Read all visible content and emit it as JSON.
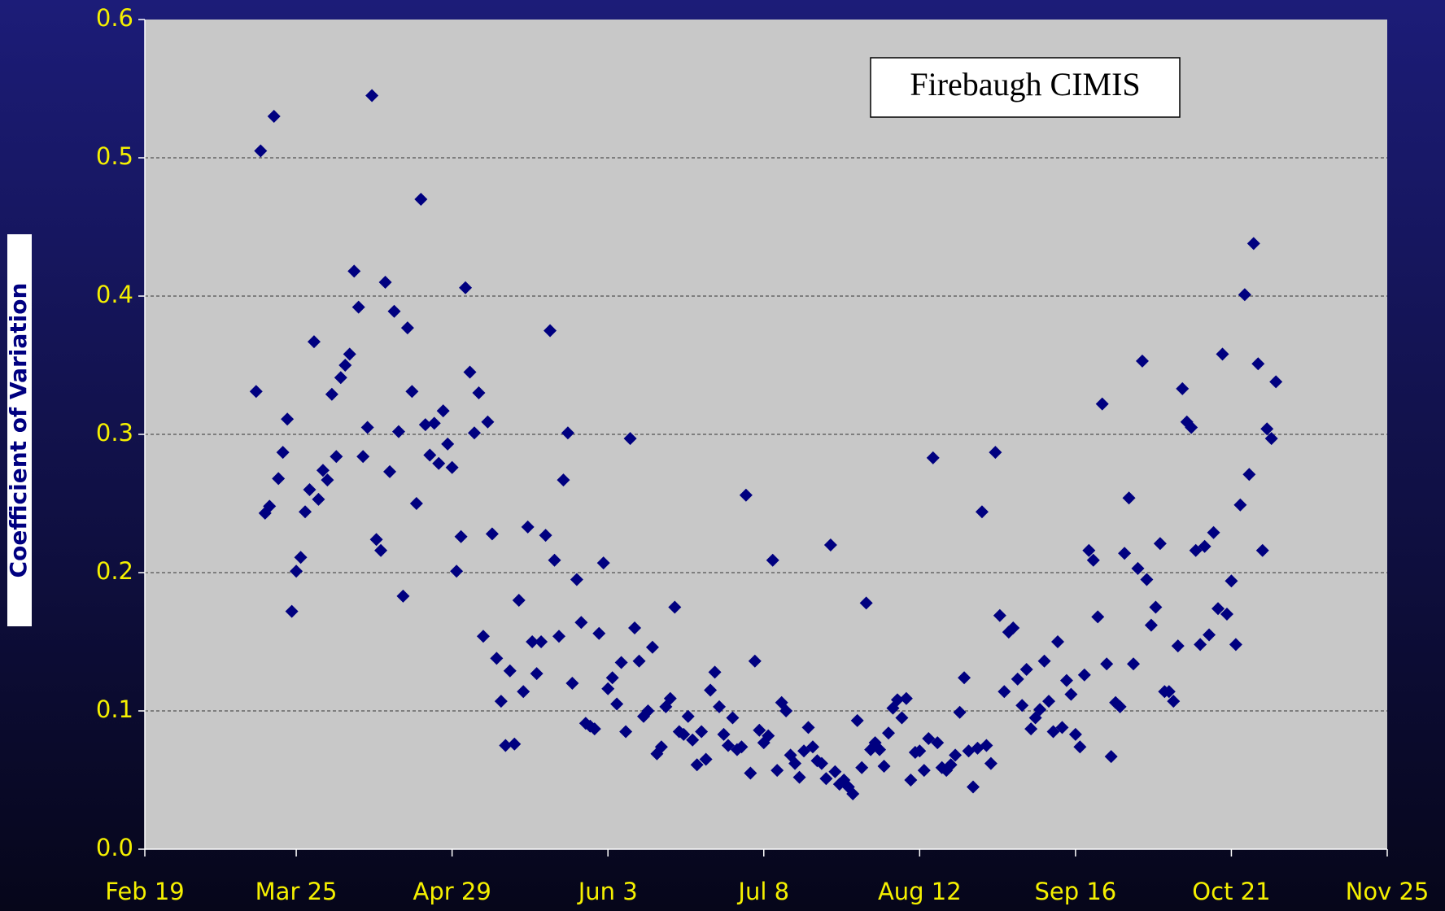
{
  "chart_data": {
    "type": "scatter",
    "y_label": "Coefficient of Variation",
    "annotation": "Firebaugh CIMIS",
    "color": "#000080",
    "grid": true,
    "xlim": [
      50,
      329
    ],
    "xticks": [
      {
        "value": 50,
        "label": "Feb 19"
      },
      {
        "value": 84,
        "label": "Mar 25"
      },
      {
        "value": 119,
        "label": "Apr 29"
      },
      {
        "value": 154,
        "label": "Jun 3"
      },
      {
        "value": 189,
        "label": "Jul 8"
      },
      {
        "value": 224,
        "label": "Aug 12"
      },
      {
        "value": 259,
        "label": "Sep 16"
      },
      {
        "value": 294,
        "label": "Oct 21"
      },
      {
        "value": 329,
        "label": "Nov 25"
      }
    ],
    "ylim": [
      0,
      0.6
    ],
    "yticks": [
      {
        "value": 0,
        "label": "0.0"
      },
      0.1,
      0.2,
      0.3,
      0.4,
      0.5,
      0.6
    ],
    "x": [
      75,
      76,
      77,
      78,
      79,
      80,
      81,
      82,
      83,
      84,
      85,
      86,
      87,
      88,
      89,
      90,
      91,
      92,
      93,
      94,
      95,
      96,
      97,
      98,
      99,
      100,
      101,
      102,
      103,
      104,
      105,
      106,
      107,
      108,
      109,
      110,
      111,
      112,
      113,
      114,
      115,
      116,
      117,
      118,
      119,
      120,
      121,
      122,
      123,
      124,
      125,
      126,
      127,
      128,
      129,
      130,
      131,
      132,
      133,
      134,
      135,
      136,
      137,
      138,
      139,
      140,
      141,
      142,
      143,
      144,
      145,
      146,
      147,
      148,
      149,
      150,
      151,
      152,
      153,
      154,
      155,
      156,
      157,
      158,
      159,
      160,
      161,
      162,
      163,
      164,
      165,
      166,
      167,
      168,
      169,
      170,
      171,
      172,
      173,
      174,
      175,
      176,
      177,
      178,
      179,
      180,
      181,
      182,
      183,
      184,
      185,
      186,
      187,
      188,
      189,
      190,
      191,
      192,
      193,
      194,
      195,
      196,
      197,
      198,
      199,
      200,
      201,
      202,
      203,
      204,
      205,
      206,
      207,
      208,
      209,
      210,
      211,
      212,
      213,
      214,
      215,
      216,
      217,
      218,
      219,
      220,
      221,
      222,
      223,
      224,
      225,
      226,
      227,
      228,
      229,
      230,
      231,
      232,
      233,
      234,
      235,
      236,
      237,
      238,
      239,
      240,
      241,
      242,
      243,
      244,
      245,
      246,
      247,
      248,
      249,
      250,
      251,
      252,
      253,
      254,
      255,
      256,
      257,
      258,
      259,
      260,
      261,
      262,
      263,
      264,
      265,
      266,
      267,
      268,
      269,
      270,
      271,
      272,
      273,
      274,
      275,
      276,
      277,
      278,
      279,
      280,
      281,
      282,
      283,
      284,
      285,
      286,
      287,
      288,
      289,
      290,
      291,
      292,
      293,
      294,
      295,
      296,
      297,
      298,
      299,
      300,
      301,
      302,
      303,
      304
    ],
    "values": [
      0.331,
      0.505,
      0.243,
      0.248,
      0.53,
      0.268,
      0.287,
      0.311,
      0.172,
      0.201,
      0.211,
      0.244,
      0.26,
      0.367,
      0.253,
      0.274,
      0.267,
      0.329,
      0.284,
      0.341,
      0.35,
      0.358,
      0.418,
      0.392,
      0.284,
      0.305,
      0.545,
      0.224,
      0.216,
      0.41,
      0.273,
      0.389,
      0.302,
      0.183,
      0.377,
      0.331,
      0.25,
      0.47,
      0.307,
      0.285,
      0.308,
      0.279,
      0.317,
      0.293,
      0.276,
      0.201,
      0.226,
      0.406,
      0.345,
      0.301,
      0.33,
      0.154,
      0.309,
      0.228,
      0.138,
      0.107,
      0.075,
      0.129,
      0.076,
      0.18,
      0.114,
      0.233,
      0.15,
      0.127,
      0.15,
      0.227,
      0.375,
      0.209,
      0.154,
      0.267,
      0.301,
      0.12,
      0.195,
      0.164,
      0.091,
      0.089,
      0.087,
      0.156,
      0.207,
      0.116,
      0.124,
      0.105,
      0.135,
      0.085,
      0.297,
      0.16,
      0.136,
      0.096,
      0.1,
      0.146,
      0.069,
      0.074,
      0.103,
      0.109,
      0.175,
      0.085,
      0.083,
      0.096,
      0.079,
      0.061,
      0.085,
      0.065,
      0.115,
      0.128,
      0.103,
      0.083,
      0.075,
      0.095,
      0.072,
      0.074,
      0.256,
      0.055,
      0.136,
      0.086,
      0.077,
      0.082,
      0.209,
      0.057,
      0.106,
      0.1,
      0.068,
      0.062,
      0.052,
      0.071,
      0.088,
      0.074,
      0.064,
      0.062,
      0.051,
      0.22,
      0.056,
      0.047,
      0.05,
      0.045,
      0.04,
      0.093,
      0.059,
      0.178,
      0.072,
      0.077,
      0.072,
      0.06,
      0.084,
      0.102,
      0.108,
      0.095,
      0.109,
      0.05,
      0.07,
      0.071,
      0.057,
      0.08,
      0.283,
      0.077,
      0.059,
      0.057,
      0.061,
      0.068,
      0.099,
      0.124,
      0.071,
      0.045,
      0.073,
      0.244,
      0.075,
      0.062,
      0.287,
      0.169,
      0.114,
      0.157,
      0.16,
      0.123,
      0.104,
      0.13,
      0.087,
      0.095,
      0.101,
      0.136,
      0.107,
      0.085,
      0.15,
      0.088,
      0.122,
      0.112,
      0.083,
      0.074,
      0.126,
      0.216,
      0.209,
      0.168,
      0.322,
      0.134,
      0.067,
      0.106,
      0.103,
      0.214,
      0.254,
      0.134,
      0.203,
      0.353,
      0.195,
      0.162,
      0.175,
      0.221,
      0.114,
      0.114,
      0.107,
      0.147,
      0.333,
      0.309,
      0.305,
      0.216,
      0.148,
      0.219,
      0.155,
      0.229,
      0.174,
      0.358,
      0.17,
      0.194,
      0.148,
      0.249,
      0.401,
      0.271,
      0.438,
      0.351,
      0.216,
      0.304,
      0.297,
      0.338
    ]
  }
}
